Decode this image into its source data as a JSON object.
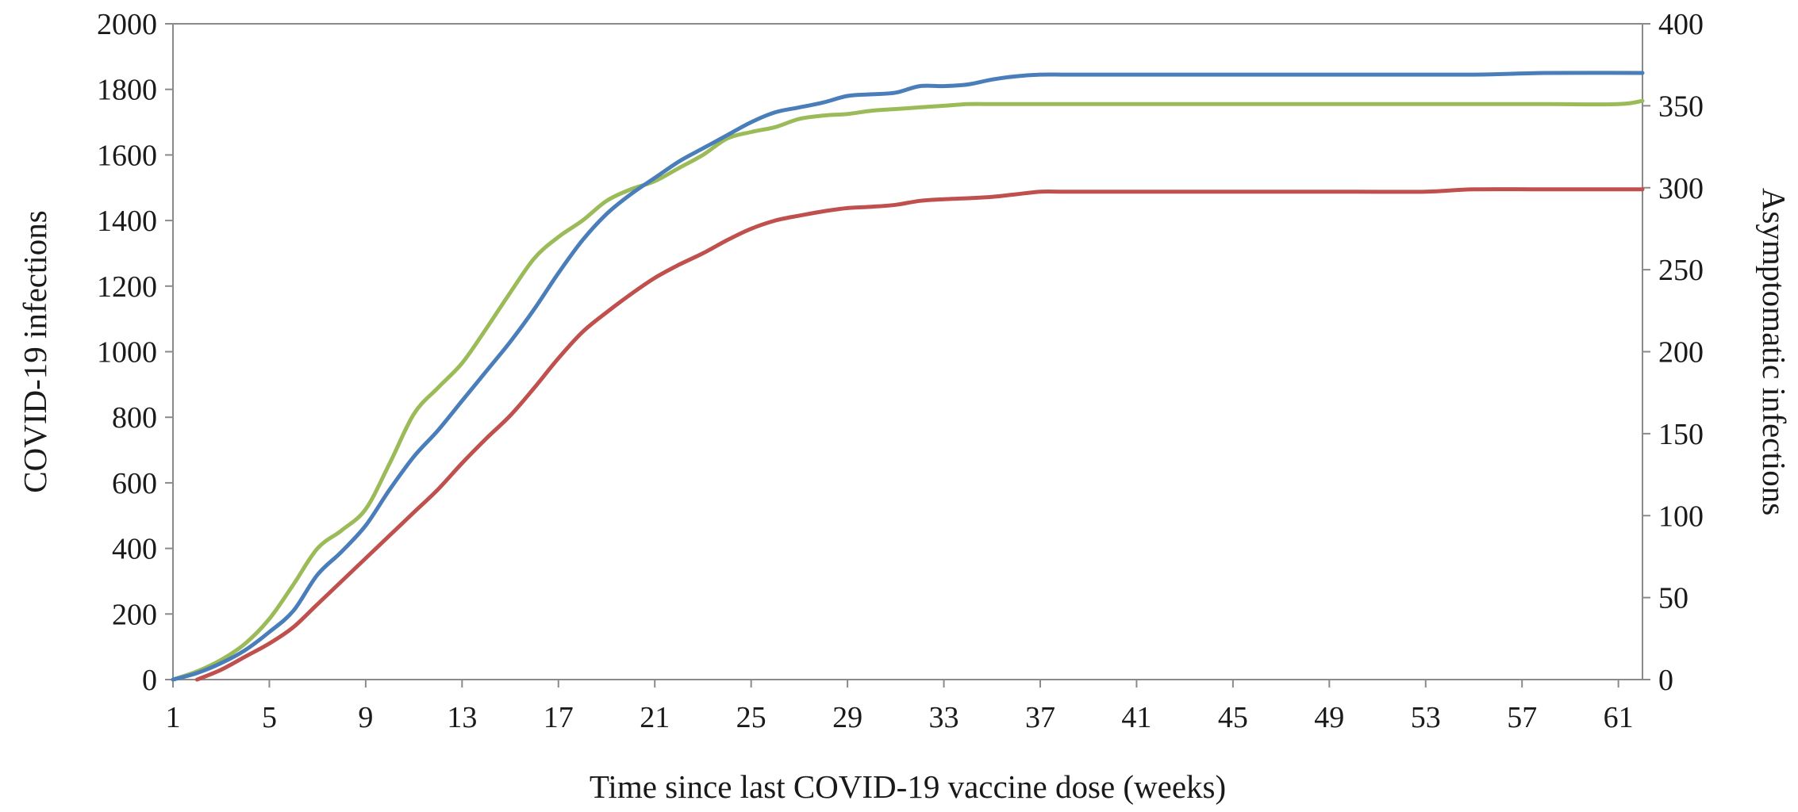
{
  "chart_data": {
    "type": "line",
    "title": "",
    "xlabel": "Time since last COVID-19 vaccine dose (weeks)",
    "ylabel_left": "COVID-19 infections",
    "ylabel_right": "Asymptomatic infections",
    "xlim": [
      1,
      62
    ],
    "x_ticks": [
      "1",
      "5",
      "9",
      "13",
      "17",
      "21",
      "25",
      "29",
      "33",
      "37",
      "41",
      "45",
      "49",
      "53",
      "57",
      "61"
    ],
    "ylim_left": [
      0,
      2000
    ],
    "y_ticks_left": [
      "0",
      "200",
      "400",
      "600",
      "800",
      "1000",
      "1200",
      "1400",
      "1600",
      "1800",
      "2000"
    ],
    "ylim_right": [
      0,
      400
    ],
    "y_ticks_right": [
      "0",
      "50",
      "100",
      "150",
      "200",
      "250",
      "300",
      "350",
      "400"
    ],
    "grid": false,
    "legend": "none",
    "series": [
      {
        "color": "#4a7ebb",
        "axis": "left",
        "x": [
          1,
          2,
          3,
          4,
          5,
          6,
          7,
          8,
          9,
          10,
          11,
          12,
          13,
          14,
          15,
          16,
          17,
          18,
          19,
          20,
          21,
          22,
          23,
          24,
          25,
          26,
          27,
          28,
          29,
          30,
          31,
          32,
          33,
          34,
          35,
          36,
          37,
          38,
          39,
          40,
          45,
          50,
          55,
          58,
          62
        ],
        "y": [
          0,
          20,
          50,
          90,
          145,
          210,
          320,
          390,
          470,
          580,
          680,
          760,
          850,
          940,
          1030,
          1130,
          1240,
          1340,
          1420,
          1480,
          1530,
          1580,
          1620,
          1660,
          1700,
          1730,
          1745,
          1760,
          1780,
          1785,
          1790,
          1810,
          1810,
          1815,
          1830,
          1840,
          1845,
          1845,
          1845,
          1845,
          1845,
          1845,
          1845,
          1850,
          1850
        ]
      },
      {
        "color": "#c0504d",
        "axis": "left",
        "x": [
          2,
          3,
          4,
          5,
          6,
          7,
          8,
          9,
          10,
          11,
          12,
          13,
          14,
          15,
          16,
          17,
          18,
          19,
          20,
          21,
          22,
          23,
          24,
          25,
          26,
          27,
          28,
          29,
          30,
          31,
          32,
          33,
          34,
          35,
          36,
          37,
          38,
          40,
          45,
          50,
          53,
          55,
          58,
          62
        ],
        "y": [
          0,
          30,
          70,
          110,
          160,
          230,
          300,
          370,
          440,
          510,
          580,
          660,
          735,
          805,
          890,
          980,
          1060,
          1120,
          1175,
          1225,
          1265,
          1300,
          1340,
          1375,
          1400,
          1415,
          1428,
          1438,
          1442,
          1448,
          1460,
          1465,
          1468,
          1472,
          1480,
          1488,
          1488,
          1488,
          1488,
          1488,
          1488,
          1495,
          1495,
          1495
        ]
      },
      {
        "color": "#9bbb59",
        "axis": "right",
        "x": [
          1,
          2,
          3,
          4,
          5,
          6,
          7,
          8,
          9,
          10,
          11,
          12,
          13,
          14,
          15,
          16,
          17,
          18,
          19,
          20,
          21,
          22,
          23,
          24,
          25,
          26,
          27,
          28,
          29,
          30,
          31,
          32,
          33,
          34,
          35,
          36,
          40,
          45,
          50,
          55,
          58,
          61,
          62
        ],
        "y": [
          0,
          5,
          12,
          22,
          37,
          58,
          80,
          91,
          104,
          132,
          162,
          178,
          193,
          214,
          236,
          257,
          270,
          280,
          292,
          299,
          304,
          312,
          320,
          330,
          334,
          337,
          342,
          344,
          345,
          347,
          348,
          349,
          350,
          351,
          351,
          351,
          351,
          351,
          351,
          351,
          351,
          351,
          353
        ]
      }
    ]
  }
}
